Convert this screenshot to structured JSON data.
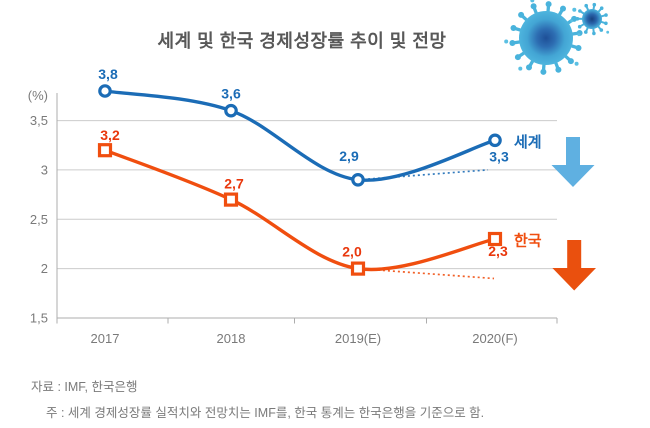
{
  "title": "세계 및 한국 경제성장률 추이 및 전망",
  "chart_data": {
    "type": "line",
    "title": "세계 및 한국 경제성장률 추이 및 전망",
    "unit_label": "(%)",
    "categories": [
      "2017",
      "2018",
      "2019(E)",
      "2020(F)"
    ],
    "y_ticks": [
      {
        "label": "3,5",
        "value": 3.5
      },
      {
        "label": "3",
        "value": 3.0
      },
      {
        "label": "2,5",
        "value": 2.5
      },
      {
        "label": "2",
        "value": 2.0
      },
      {
        "label": "1,5",
        "value": 1.5
      }
    ],
    "ylim": [
      1.5,
      3.9
    ],
    "grid": true,
    "series": [
      {
        "name": "세계",
        "values": [
          3.8,
          3.6,
          2.9,
          3.3
        ],
        "point_labels": [
          "3,8",
          "3,6",
          "2,9",
          "3,3"
        ],
        "color": "#1b6cb6",
        "label_color": "#1b6cb6",
        "marker": "circle",
        "projection": {
          "style": "dotted",
          "from_category": "2019(E)",
          "to_category": "2020(F)",
          "values": [
            2.9,
            3.0
          ]
        },
        "trend_arrow": {
          "direction": "down",
          "color": "#5fb0e1"
        }
      },
      {
        "name": "한국",
        "values": [
          3.2,
          2.7,
          2.0,
          2.3
        ],
        "point_labels": [
          "3,2",
          "2,7",
          "2,0",
          "2,3"
        ],
        "color": "#f04e0f",
        "label_color": "#e9380d",
        "marker": "square",
        "projection": {
          "style": "dotted",
          "from_category": "2019(E)",
          "to_category": "2020(F)",
          "values": [
            2.0,
            1.9
          ]
        },
        "trend_arrow": {
          "direction": "down",
          "color": "#ea500e"
        }
      }
    ],
    "legend": {
      "position": "right-of-last-point",
      "entries": [
        "세계",
        "한국"
      ]
    }
  },
  "footer": {
    "source": "자료 : IMF, 한국은행",
    "note": "주 : 세계 경제성장률 실적치와 전망치는 IMF를, 한국 통계는 한국은행을 기준으로 함."
  },
  "decoration": {
    "icons": [
      "coronavirus-icon-large",
      "coronavirus-icon-small"
    ],
    "virus_body_color": "#55bfe4",
    "virus_core_color": "#1e4f97"
  }
}
